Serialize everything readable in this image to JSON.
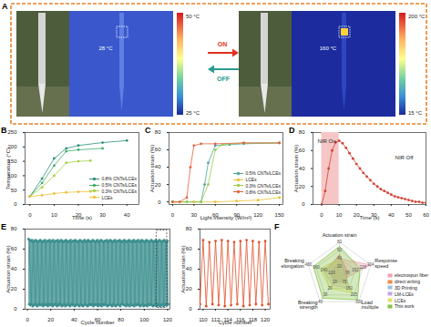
{
  "panel_a": {
    "panel": "A",
    "left": {
      "spot": "28 °C",
      "colorbar": {
        "max": "50 °C",
        "min": "25 °C"
      }
    },
    "right": {
      "spot": "160 °C",
      "colorbar": {
        "max": "200 °C",
        "min": "15 °C"
      }
    },
    "switch": {
      "on": "ON",
      "off": "OFF"
    }
  },
  "chart_data": [
    {
      "panel": "B",
      "type": "line",
      "xlabel": "Time (s)",
      "ylabel": "Temperature (°C)",
      "xlim": [
        -2,
        45
      ],
      "xticks": [
        0,
        10,
        20,
        30,
        40
      ],
      "ylim": [
        0,
        250
      ],
      "yticks": [
        0,
        50,
        100,
        150,
        200,
        250
      ],
      "legend": "lower right",
      "series": [
        {
          "name": "0.8% CNTs/LCEs",
          "color": "#2d8f7b",
          "marker": "circle",
          "x": [
            0,
            5,
            10,
            15,
            20,
            30,
            40
          ],
          "values": [
            28,
            90,
            160,
            195,
            205,
            215,
            222
          ]
        },
        {
          "name": "0.5% CNTs/LCEs",
          "color": "#3fae6a",
          "marker": "circle",
          "x": [
            0,
            5,
            10,
            15,
            20,
            30
          ],
          "values": [
            28,
            75,
            135,
            185,
            190,
            195
          ]
        },
        {
          "name": "0.3% CNTs/LCEs",
          "color": "#a6d04a",
          "marker": "circle",
          "x": [
            0,
            5,
            10,
            15,
            20,
            25
          ],
          "values": [
            28,
            60,
            100,
            145,
            150,
            152
          ]
        },
        {
          "name": "LCEs",
          "color": "#efc23a",
          "marker": "circle",
          "x": [
            0,
            5,
            10,
            15,
            20,
            25
          ],
          "values": [
            28,
            32,
            38,
            42,
            44,
            45
          ]
        }
      ]
    },
    {
      "panel": "C",
      "type": "line",
      "xlabel": "Light intensity (W/m²)",
      "ylabel": "Actuation strain (%)",
      "xlim": [
        -5,
        155
      ],
      "xticks": [
        0,
        30,
        60,
        90,
        120,
        150
      ],
      "ylim": [
        -3,
        80
      ],
      "yticks": [
        0,
        20,
        40,
        60,
        80
      ],
      "legend": "lower right",
      "series": [
        {
          "name": "0.5% CNTs/LCEs",
          "color": "#4aa39a",
          "marker": "circle",
          "x": [
            0,
            20,
            40,
            45,
            50,
            60,
            80,
            100,
            150
          ],
          "values": [
            0,
            0,
            0,
            20,
            45,
            65,
            66,
            67,
            68
          ]
        },
        {
          "name": "LCEs",
          "color": "#e8c030",
          "marker": "circle",
          "x": [
            0,
            30,
            60,
            90,
            120,
            150
          ],
          "values": [
            0,
            0,
            0,
            1,
            2,
            5
          ]
        },
        {
          "name": "0.3% CNTs/LCEs",
          "color": "#9ccc4c",
          "marker": "circle",
          "x": [
            0,
            20,
            40,
            50,
            60,
            70,
            100,
            150
          ],
          "values": [
            0,
            0,
            0,
            20,
            60,
            66,
            68,
            68
          ]
        },
        {
          "name": "0.8% CNTs/LCEs",
          "color": "#e4603c",
          "marker": "circle",
          "x": [
            0,
            10,
            20,
            25,
            30,
            40,
            60,
            100,
            150
          ],
          "values": [
            0,
            0,
            5,
            40,
            65,
            67,
            67,
            68,
            68
          ]
        }
      ]
    },
    {
      "panel": "D",
      "type": "line",
      "xlabel": "Time (s)",
      "ylabel": "Actuation strain (%)",
      "xlim": [
        -5,
        60
      ],
      "xticks": [
        0,
        10,
        20,
        30,
        40,
        50,
        60
      ],
      "ylim": [
        0,
        80
      ],
      "yticks": [
        0,
        20,
        40,
        60,
        80
      ],
      "nir_on": [
        0,
        10
      ],
      "annotations": [
        "NIR On",
        "NIR Off"
      ],
      "series": [
        {
          "color": "#d04030",
          "marker": "circle",
          "x": [
            0,
            2,
            4,
            6,
            8,
            10,
            12,
            14,
            16,
            18,
            20,
            22,
            24,
            26,
            28,
            30,
            32,
            34,
            36,
            38,
            40,
            42,
            44,
            46,
            48,
            50,
            52,
            54,
            56,
            58,
            60
          ],
          "values": [
            0,
            15,
            40,
            60,
            69,
            71,
            68,
            63,
            57,
            51,
            45,
            40,
            35,
            31,
            27,
            23,
            20,
            17,
            15,
            13,
            11,
            9,
            8,
            7,
            6,
            5,
            4,
            3,
            3,
            2,
            2
          ]
        }
      ]
    },
    {
      "panel": "E",
      "type": "line",
      "xlabel": "Cycle number",
      "ylabel": "Actuation strain (%)",
      "xlim": [
        -2,
        122
      ],
      "xticks": [
        0,
        20,
        40,
        60,
        80,
        100,
        120
      ],
      "ylim": [
        0,
        80
      ],
      "yticks": [
        0,
        20,
        40,
        60,
        80
      ],
      "series": [
        {
          "color": "#3b8e8e",
          "marker": "circle",
          "x": [
            1,
            1.5,
            2,
            2.5,
            3,
            3.5,
            4,
            4.5,
            5,
            5.5,
            6,
            6.5,
            7,
            7.5,
            8,
            8.5,
            9,
            9.5,
            10,
            10.5,
            11,
            11.5,
            12,
            12.5,
            13,
            13.5,
            14,
            14.5,
            15,
            15.5,
            16,
            16.5,
            17,
            17.5,
            18,
            18.5,
            19,
            19.5,
            20,
            20.5,
            21,
            21.5,
            22,
            22.5,
            23,
            23.5,
            24,
            24.5,
            25,
            25.5,
            26,
            26.5,
            27,
            27.5,
            28,
            28.5,
            29,
            29.5,
            30,
            30.5,
            31,
            31.5,
            32,
            32.5,
            33,
            33.5,
            34,
            34.5,
            35,
            35.5,
            36,
            36.5,
            37,
            37.5,
            38,
            38.5,
            39,
            39.5,
            40,
            40.5,
            41,
            41.5,
            42,
            42.5,
            43,
            43.5,
            44,
            44.5,
            45,
            45.5,
            46,
            46.5,
            47,
            47.5,
            48,
            48.5,
            49,
            49.5,
            50,
            50.5,
            51,
            51.5,
            52,
            52.5,
            53,
            53.5,
            54,
            54.5,
            55,
            55.5,
            56,
            56.5,
            57,
            57.5,
            58,
            58.5,
            59,
            59.5,
            60,
            60.5,
            61,
            61.5,
            62,
            62.5,
            63,
            63.5,
            64,
            64.5,
            65,
            65.5,
            66,
            66.5,
            67,
            67.5,
            68,
            68.5,
            69,
            69.5,
            70,
            70.5,
            71,
            71.5,
            72,
            72.5,
            73,
            73.5,
            74,
            74.5,
            75,
            75.5,
            76,
            76.5,
            77,
            77.5,
            78,
            78.5,
            79,
            79.5,
            80,
            80.5,
            81,
            81.5,
            82,
            82.5,
            83,
            83.5,
            84,
            84.5,
            85,
            85.5,
            86,
            86.5,
            87,
            87.5,
            88,
            88.5,
            89,
            89.5,
            90,
            90.5,
            91,
            91.5,
            92,
            92.5,
            93,
            93.5,
            94,
            94.5,
            95,
            95.5,
            96,
            96.5,
            97,
            97.5,
            98,
            98.5,
            99,
            99.5,
            100,
            100.5,
            101,
            101.5,
            102,
            102.5,
            103,
            103.5,
            104,
            104.5,
            105,
            105.5,
            106,
            106.5,
            107,
            107.5,
            108,
            108.5,
            109,
            109.5,
            110,
            110.5,
            111,
            111.5,
            112,
            112.5,
            113,
            113.5,
            114,
            114.5,
            115,
            115.5,
            116,
            116.5,
            117,
            117.5,
            118,
            118.5,
            119,
            119.5,
            120,
            120.5
          ],
          "values": [
            70,
            5,
            69,
            4,
            68,
            5,
            69,
            3,
            67,
            4,
            68,
            5,
            69,
            4,
            68,
            3,
            67,
            5,
            68,
            4,
            69,
            4,
            68,
            5,
            67,
            3,
            68,
            4,
            69,
            5,
            67,
            4,
            68,
            3,
            68,
            5,
            69,
            4,
            67,
            5,
            68,
            3,
            69,
            4,
            67,
            5,
            68,
            4,
            68,
            3,
            69,
            5,
            67,
            4,
            68,
            5,
            69,
            3,
            68,
            4,
            67,
            5,
            68,
            3,
            69,
            4,
            68,
            5,
            67,
            4,
            68,
            3,
            69,
            5,
            67,
            4,
            68,
            5,
            68,
            3,
            69,
            4,
            68,
            5,
            67,
            4,
            68,
            3,
            69,
            5,
            68,
            4,
            67,
            3,
            68,
            4,
            69,
            5,
            67,
            4,
            68,
            3,
            69,
            4,
            68,
            5,
            67,
            4,
            68,
            5,
            69,
            3,
            68,
            4,
            67,
            5,
            68,
            4,
            69,
            3,
            67,
            5,
            68,
            4,
            69,
            3,
            68,
            5,
            67,
            4,
            68,
            5,
            68,
            4,
            69,
            3,
            67,
            4,
            68,
            5,
            69,
            4,
            68,
            3,
            67,
            5,
            68,
            4,
            69,
            3,
            67,
            4,
            68,
            5,
            68,
            4,
            69,
            3,
            68,
            5,
            67,
            5,
            68,
            4,
            69,
            4,
            68,
            3,
            67,
            5,
            68,
            4,
            69,
            3,
            68,
            5,
            67,
            4,
            68,
            4,
            69,
            3,
            67,
            5,
            68,
            4,
            68,
            5,
            69,
            4,
            67,
            3,
            68,
            4,
            69,
            5,
            68,
            3,
            67,
            4,
            68,
            4,
            69,
            3,
            68,
            5,
            67,
            4,
            68,
            5,
            69,
            4,
            68,
            3,
            67,
            4,
            68,
            5,
            69,
            3,
            67,
            5,
            68,
            4,
            69,
            3,
            68,
            4,
            67,
            5,
            68,
            3,
            69,
            4,
            68,
            5,
            67,
            4,
            68,
            5
          ]
        }
      ],
      "inset": {
        "type": "line",
        "xlabel": "Cycle number",
        "ylabel": "Actuation strain (%)",
        "xlim": [
          109.5,
          120.8
        ],
        "xticks": [
          110,
          112,
          114,
          116,
          118,
          120
        ],
        "ylim": [
          0,
          80
        ],
        "yticks": [
          0,
          20,
          40,
          60,
          80
        ],
        "color": "#e0502a",
        "marker": "circle"
      }
    },
    {
      "panel": "F",
      "type": "radar",
      "legend": "right",
      "axes": [
        {
          "name": "Actuation strain",
          "lim": [
            0,
            80
          ],
          "ticks": [
            20,
            40,
            60,
            80
          ]
        },
        {
          "name": "Response speed",
          "lim": [
            0,
            304
          ],
          "ticks": [
            76,
            152,
            228,
            304
          ]
        },
        {
          "name": "Load mulitple",
          "lim": [
            0,
            300
          ],
          "ticks": [
            75,
            150,
            225,
            300
          ]
        },
        {
          "name": "Breaking strength",
          "lim": [
            0,
            40
          ],
          "ticks": [
            10,
            20,
            30,
            40
          ]
        },
        {
          "name": "Breaking elongation",
          "lim": [
            0,
            480
          ],
          "ticks": [
            120,
            240,
            360,
            480
          ]
        }
      ],
      "series": [
        {
          "name": "electrospun fiber",
          "color": "#f4a0b4",
          "values": [
            40,
            300,
            50,
            10,
            100
          ]
        },
        {
          "name": "direct writing",
          "color": "#f08a4a",
          "values": [
            50,
            80,
            100,
            8,
            200
          ]
        },
        {
          "name": "3D Printing",
          "color": "#9cc0e4",
          "values": [
            30,
            40,
            80,
            12,
            150
          ]
        },
        {
          "name": "LM-LCEs",
          "color": "#c4a4e4",
          "values": [
            45,
            60,
            150,
            15,
            250
          ]
        },
        {
          "name": "LCEs",
          "color": "#e4e066",
          "values": [
            40,
            30,
            200,
            20,
            300
          ]
        },
        {
          "name": "This work",
          "color": "#84c444",
          "values": [
            70,
            200,
            280,
            35,
            400
          ]
        }
      ]
    }
  ]
}
